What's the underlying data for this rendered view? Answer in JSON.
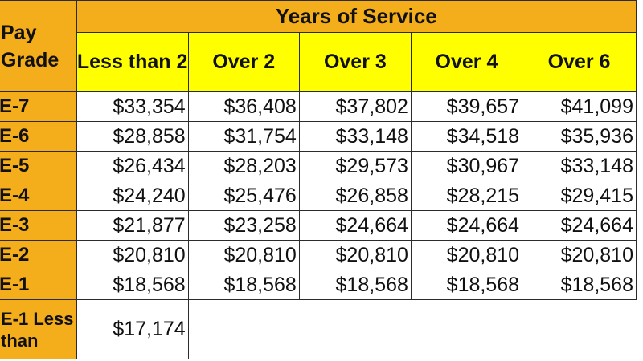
{
  "table": {
    "title": "Years of Service",
    "pay_grade_header": "Pay Grade",
    "columns": [
      "Less than 2",
      "Over 2",
      "Over 3",
      "Over 4",
      "Over 6"
    ],
    "rows": [
      {
        "grade": "E-7",
        "values": [
          "$33,354",
          "$36,408",
          "$37,802",
          "$39,657",
          "$41,099"
        ]
      },
      {
        "grade": "E-6",
        "values": [
          "$28,858",
          "$31,754",
          "$33,148",
          "$34,518",
          "$35,936"
        ]
      },
      {
        "grade": "E-5",
        "values": [
          "$26,434",
          "$28,203",
          "$29,573",
          "$30,967",
          "$33,148"
        ]
      },
      {
        "grade": "E-4",
        "values": [
          "$24,240",
          "$25,476",
          "$26,858",
          "$28,215",
          "$29,415"
        ]
      },
      {
        "grade": "E-3",
        "values": [
          "$21,877",
          "$23,258",
          "$24,664",
          "$24,664",
          "$24,664"
        ]
      },
      {
        "grade": "E-2",
        "values": [
          "$20,810",
          "$20,810",
          "$20,810",
          "$20,810",
          "$20,810"
        ]
      },
      {
        "grade": "E-1",
        "values": [
          "$18,568",
          "$18,568",
          "$18,568",
          "$18,568",
          "$18,568"
        ]
      }
    ],
    "extra_row": {
      "grade": "E-1 Less than",
      "value": "$17,174"
    }
  },
  "colors": {
    "header_orange": "#f4ad1b",
    "header_yellow": "#ffff00",
    "cell_bg": "#ffffff",
    "grid": "#2b2b2b"
  }
}
